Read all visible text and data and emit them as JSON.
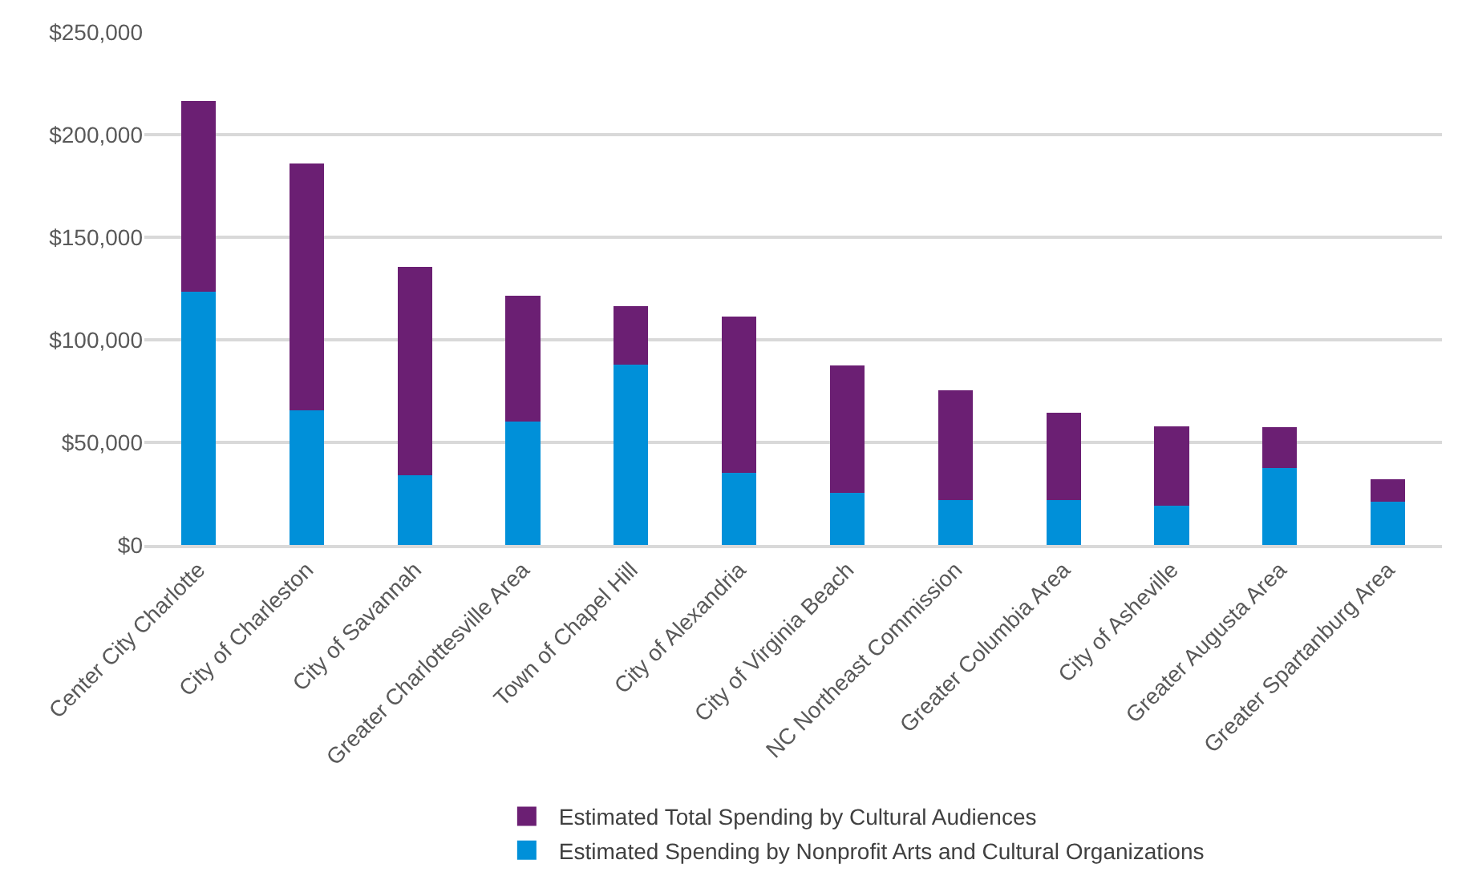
{
  "chart_data": {
    "type": "bar",
    "stacked": true,
    "categories": [
      "Center City Charlotte",
      "City of Charleston",
      "City of Savannah",
      "Greater Charlottesville Area",
      "Town of Chapel Hill",
      "City of Alexandria",
      "City of Virginia Beach",
      "NC Northeast Commission",
      "Greater Columbia Area",
      "City of Asheville",
      "Greater Augusta Area",
      "Greater Spartanburg Area"
    ],
    "series": [
      {
        "name": "Estimated Spending by Nonprofit Arts and Cultural Organizations",
        "color": "#0090d9",
        "values": [
          123500,
          65500,
          34000,
          60000,
          88000,
          35000,
          25500,
          22000,
          22000,
          19000,
          37500,
          21000
        ]
      },
      {
        "name": "Estimated Total Spending by Cultural Audiences",
        "color": "#6b1f73",
        "values": [
          93000,
          120500,
          101500,
          61500,
          28500,
          76500,
          62000,
          53500,
          42500,
          39000,
          20000,
          11000
        ]
      }
    ],
    "ylim": [
      0,
      250000
    ],
    "yticks": [
      {
        "value": 0,
        "label": "$0"
      },
      {
        "value": 50000,
        "label": "$50,000"
      },
      {
        "value": 100000,
        "label": "$100,000"
      },
      {
        "value": 150000,
        "label": "$150,000"
      },
      {
        "value": 200000,
        "label": "$200,000"
      },
      {
        "value": 250000,
        "label": "$250,000"
      }
    ],
    "grid": "y",
    "legend": "bottom"
  }
}
